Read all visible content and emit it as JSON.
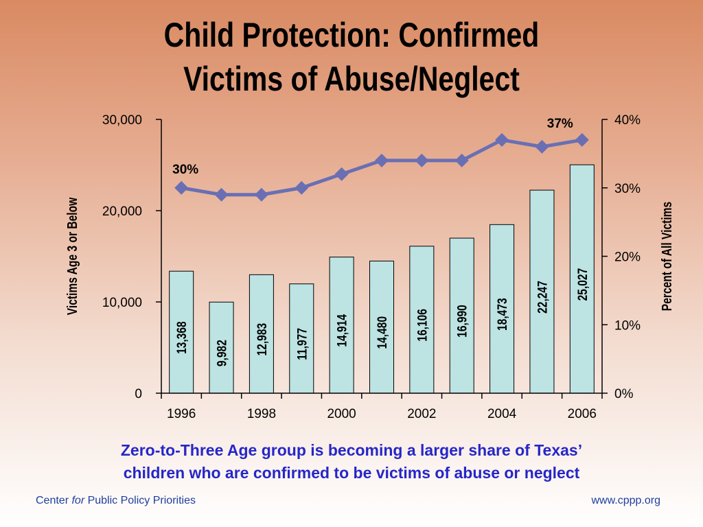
{
  "title_line1": "Child Protection: Confirmed",
  "title_line2": "Victims of Abuse/Neglect",
  "subtitle_line1": "Zero-to-Three Age group is becoming a larger share of Texas’",
  "subtitle_line2": "children who are confirmed to be victims of abuse or neglect",
  "footer": {
    "org_before": "Center ",
    "org_italic": "for",
    "org_after": " Public Policy Priorities",
    "url": "www.cppp.org"
  },
  "colors": {
    "bar_fill": "#bde3e3",
    "bar_stroke": "#000000",
    "line": "#6a6fb3",
    "subtitle": "#2626c8",
    "footer": "#1f3f9f"
  },
  "chart_data": {
    "type": "bar",
    "x": [
      1996,
      1997,
      1998,
      1999,
      2000,
      2001,
      2002,
      2003,
      2004,
      2005,
      2006
    ],
    "x_tick_labels": [
      "1996",
      "1998",
      "2000",
      "2002",
      "2004",
      "2006"
    ],
    "series": [
      {
        "type": "bar",
        "axis": "left",
        "values": [
          13368,
          9982,
          12983,
          11977,
          14914,
          14480,
          16106,
          16990,
          18473,
          22247,
          25027
        ],
        "labels": [
          "13,368",
          "9,982",
          "12,983",
          "11,977",
          "14,914",
          "14,480",
          "16,106",
          "16,990",
          "18,473",
          "22,247",
          "25,027"
        ]
      },
      {
        "type": "line",
        "axis": "right",
        "values": [
          30,
          29,
          29,
          30,
          32,
          34,
          34,
          34,
          37,
          36,
          37
        ]
      }
    ],
    "annotations": [
      "30%",
      "37%"
    ],
    "ylabel_left": "Victims Age 3 or Below",
    "ylabel_right": "Percent of All Victims",
    "ylim_left": [
      0,
      30000
    ],
    "yticks_left": [
      "0",
      "10,000",
      "20,000",
      "30,000"
    ],
    "ylim_right": [
      0,
      40
    ],
    "yticks_right": [
      "0%",
      "10%",
      "20%",
      "30%",
      "40%"
    ],
    "grid": false,
    "legend": "none"
  }
}
